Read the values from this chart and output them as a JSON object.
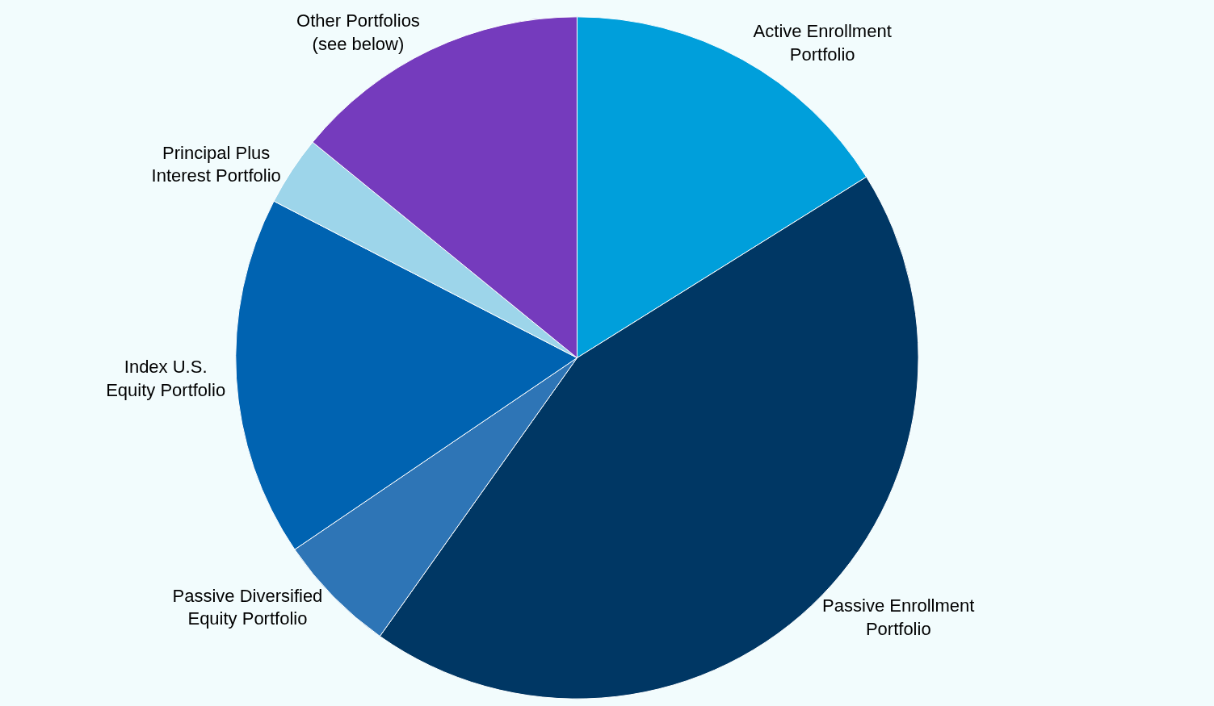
{
  "chart_data": {
    "type": "pie",
    "categories": [
      "Active Enrollment Portfolio",
      "Passive Enrollment Portfolio",
      "Passive Diversified Equity Portfolio",
      "Index U.S. Equity Portfolio",
      "Principal Plus Interest Portfolio",
      "Other Portfolios (see below)"
    ],
    "values": [
      16.1,
      43.7,
      5.7,
      17.1,
      3.3,
      14.1
    ],
    "colors": [
      "#009fdb",
      "#003764",
      "#2e75b6",
      "#0063b1",
      "#9dd5ea",
      "#753bbd"
    ],
    "legend": false
  }
}
